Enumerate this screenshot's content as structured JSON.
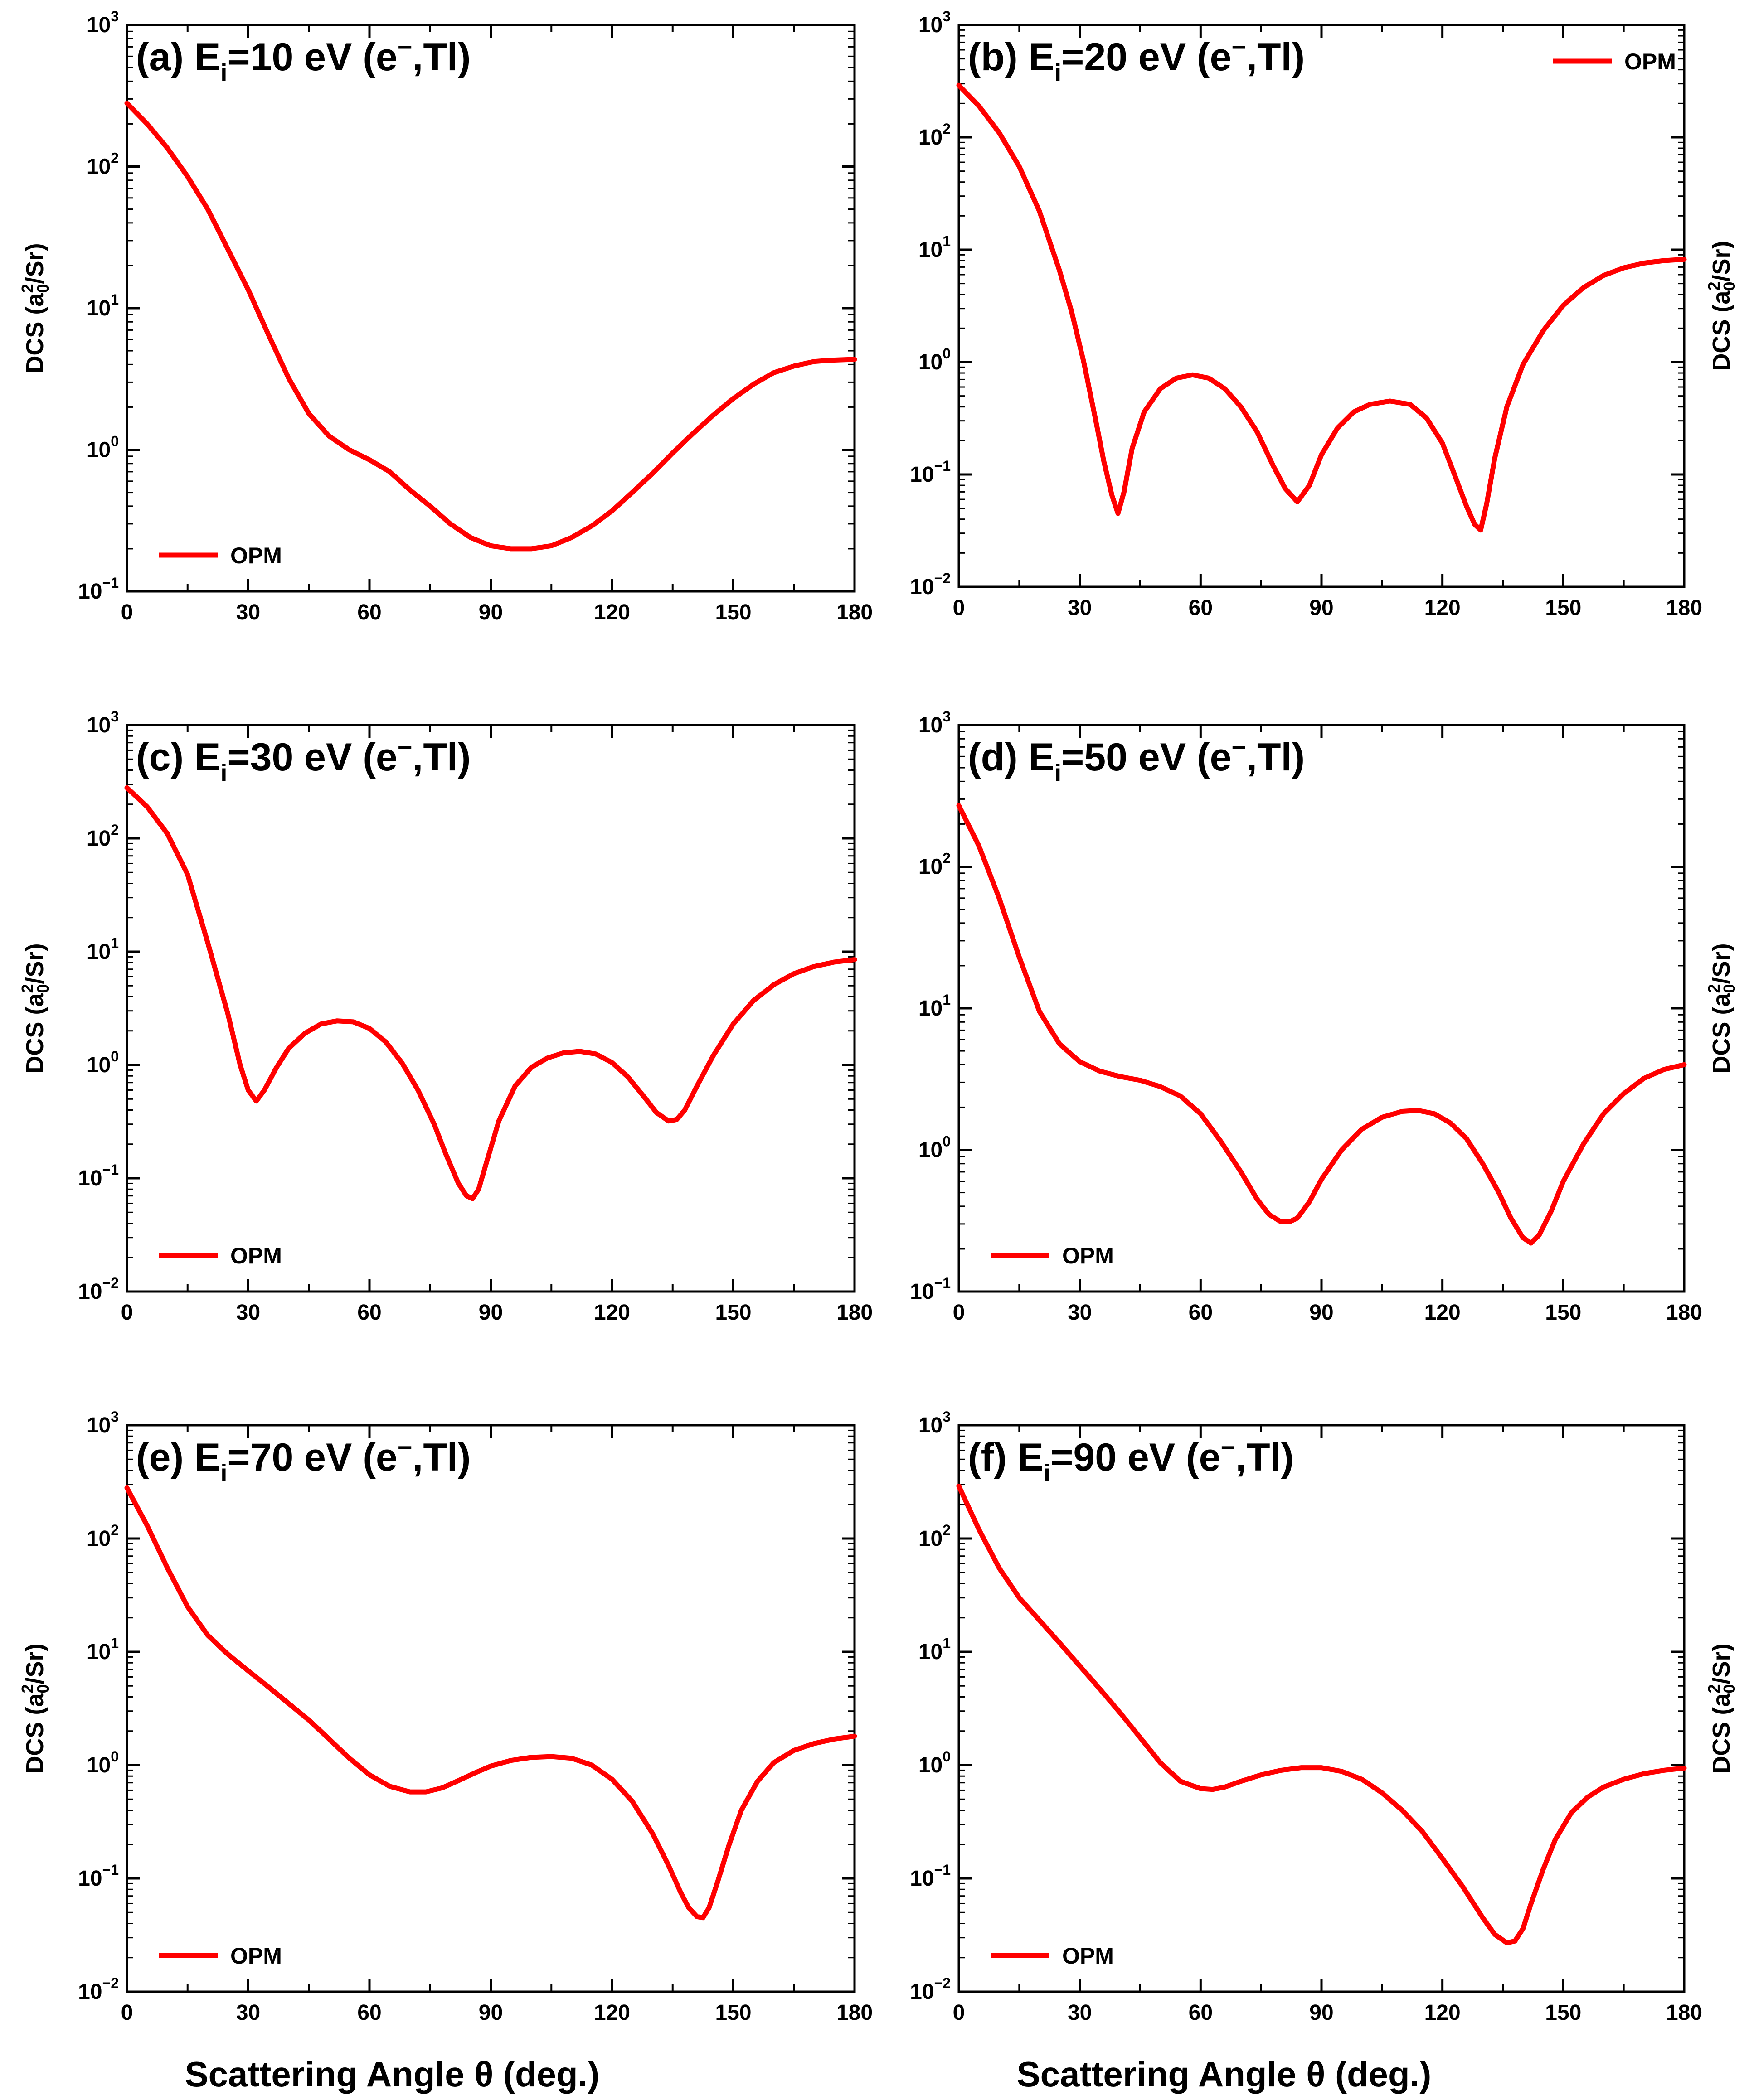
{
  "figure": {
    "xlabel": "Scattering Angle θ (deg.)"
  },
  "chart_data": [
    {
      "id": "a",
      "type": "line",
      "title": "(a) E",
      "subscript": "i",
      "title_rest": "=10 eV (e",
      "charge": "−",
      "title_end": ",Tl)",
      "xlabel": "Scattering Angle θ (deg.)",
      "ylabel": "DCS (a0²/Sr)",
      "ylabel_side": "left",
      "xlim": [
        0,
        180
      ],
      "ylim": [
        0.1,
        1000
      ],
      "yscale": "log",
      "xticks": [
        "0",
        "30",
        "60",
        "90",
        "120",
        "150",
        "180"
      ],
      "yticks": [
        "10^-1",
        "10^0",
        "10^1",
        "10^2",
        "10^3"
      ],
      "legend": "OPM",
      "legend_position": "bottom-left",
      "series": [
        {
          "name": "OPM",
          "color": "#ff0000",
          "x": [
            0,
            5,
            10,
            15,
            20,
            25,
            30,
            35,
            40,
            45,
            50,
            55,
            60,
            65,
            70,
            75,
            80,
            85,
            90,
            95,
            100,
            105,
            110,
            115,
            120,
            125,
            130,
            135,
            140,
            145,
            150,
            155,
            160,
            165,
            170,
            175,
            180
          ],
          "y": [
            280,
            200,
            135,
            85,
            50,
            26,
            13.5,
            6.5,
            3.2,
            1.8,
            1.25,
            1.0,
            0.85,
            0.7,
            0.52,
            0.4,
            0.3,
            0.24,
            0.21,
            0.2,
            0.2,
            0.21,
            0.24,
            0.29,
            0.37,
            0.5,
            0.68,
            0.95,
            1.3,
            1.75,
            2.3,
            2.9,
            3.5,
            3.9,
            4.2,
            4.3,
            4.35
          ]
        }
      ]
    },
    {
      "id": "b",
      "type": "line",
      "title": "(b) E",
      "subscript": "i",
      "title_rest": "=20 eV (e",
      "charge": "−",
      "title_end": ",Tl)",
      "xlabel": "Scattering Angle θ (deg.)",
      "ylabel": "DCS (a0²/Sr)",
      "ylabel_side": "right",
      "xlim": [
        0,
        180
      ],
      "ylim": [
        0.01,
        1000
      ],
      "yscale": "log",
      "xticks": [
        "0",
        "30",
        "60",
        "90",
        "120",
        "150",
        "180"
      ],
      "yticks": [
        "10^-2",
        "10^-1",
        "10^0",
        "10^1",
        "10^2",
        "10^3"
      ],
      "legend": "OPM",
      "legend_position": "top-right",
      "series": [
        {
          "name": "OPM",
          "color": "#ff0000",
          "x": [
            0,
            5,
            10,
            15,
            20,
            25,
            28,
            31,
            34,
            36,
            38,
            39.5,
            41,
            43,
            46,
            50,
            54,
            58,
            62,
            66,
            70,
            74,
            78,
            81,
            84,
            87,
            90,
            94,
            98,
            102,
            107,
            112,
            116,
            120,
            123,
            126,
            128,
            129.5,
            131,
            133,
            136,
            140,
            145,
            150,
            155,
            160,
            165,
            170,
            175,
            180
          ],
          "y": [
            290,
            190,
            110,
            55,
            22,
            6.5,
            2.8,
            1.0,
            0.3,
            0.13,
            0.065,
            0.045,
            0.07,
            0.17,
            0.36,
            0.58,
            0.72,
            0.77,
            0.72,
            0.58,
            0.4,
            0.24,
            0.12,
            0.075,
            0.057,
            0.08,
            0.15,
            0.26,
            0.36,
            0.42,
            0.45,
            0.42,
            0.32,
            0.19,
            0.1,
            0.052,
            0.036,
            0.032,
            0.055,
            0.14,
            0.4,
            0.95,
            1.9,
            3.2,
            4.6,
            5.9,
            6.9,
            7.6,
            8.0,
            8.2
          ]
        }
      ]
    },
    {
      "id": "c",
      "type": "line",
      "title": "(c) E",
      "subscript": "i",
      "title_rest": "=30 eV (e",
      "charge": "−",
      "title_end": ",Tl)",
      "xlabel": "Scattering Angle θ (deg.)",
      "ylabel": "DCS (a0²/Sr)",
      "ylabel_side": "left",
      "xlim": [
        0,
        180
      ],
      "ylim": [
        0.01,
        1000
      ],
      "yscale": "log",
      "xticks": [
        "0",
        "30",
        "60",
        "90",
        "120",
        "150",
        "180"
      ],
      "yticks": [
        "10^-2",
        "10^-1",
        "10^0",
        "10^1",
        "10^2",
        "10^3"
      ],
      "legend": "OPM",
      "legend_position": "bottom-left",
      "series": [
        {
          "name": "OPM",
          "color": "#ff0000",
          "x": [
            0,
            5,
            10,
            15,
            20,
            25,
            28,
            30,
            32,
            34,
            37,
            40,
            44,
            48,
            52,
            56,
            60,
            64,
            68,
            72,
            76,
            79,
            82,
            84,
            85.5,
            87,
            89,
            92,
            96,
            100,
            104,
            108,
            112,
            116,
            120,
            124,
            128,
            131,
            134,
            136,
            138,
            141,
            145,
            150,
            155,
            160,
            165,
            170,
            175,
            180
          ],
          "y": [
            280,
            190,
            110,
            48,
            12,
            2.8,
            1.0,
            0.6,
            0.48,
            0.6,
            0.95,
            1.4,
            1.9,
            2.3,
            2.45,
            2.4,
            2.1,
            1.6,
            1.05,
            0.6,
            0.3,
            0.16,
            0.09,
            0.07,
            0.066,
            0.08,
            0.14,
            0.32,
            0.65,
            0.95,
            1.15,
            1.28,
            1.32,
            1.25,
            1.05,
            0.78,
            0.52,
            0.38,
            0.32,
            0.33,
            0.4,
            0.65,
            1.2,
            2.3,
            3.7,
            5.1,
            6.4,
            7.4,
            8.1,
            8.5
          ]
        }
      ]
    },
    {
      "id": "d",
      "type": "line",
      "title": "(d) E",
      "subscript": "i",
      "title_rest": "=50 eV (e",
      "charge": "−",
      "title_end": ",Tl)",
      "xlabel": "Scattering Angle θ (deg.)",
      "ylabel": "DCS (a0²/Sr)",
      "ylabel_side": "right",
      "xlim": [
        0,
        180
      ],
      "ylim": [
        0.1,
        1000
      ],
      "yscale": "log",
      "xticks": [
        "0",
        "30",
        "60",
        "90",
        "120",
        "150",
        "180"
      ],
      "yticks": [
        "10^-1",
        "10^0",
        "10^1",
        "10^2",
        "10^3"
      ],
      "legend": "OPM",
      "legend_position": "bottom-left",
      "series": [
        {
          "name": "OPM",
          "color": "#ff0000",
          "x": [
            0,
            5,
            10,
            15,
            20,
            25,
            30,
            35,
            40,
            45,
            50,
            55,
            60,
            65,
            70,
            74,
            77,
            80,
            82,
            84,
            87,
            90,
            95,
            100,
            105,
            110,
            114,
            118,
            122,
            126,
            130,
            134,
            137,
            140,
            142,
            144,
            147,
            150,
            155,
            160,
            165,
            170,
            175,
            180
          ],
          "y": [
            270,
            140,
            60,
            23,
            9.5,
            5.6,
            4.2,
            3.6,
            3.3,
            3.1,
            2.8,
            2.4,
            1.8,
            1.15,
            0.7,
            0.45,
            0.35,
            0.31,
            0.31,
            0.33,
            0.43,
            0.62,
            1.0,
            1.4,
            1.7,
            1.87,
            1.9,
            1.8,
            1.55,
            1.2,
            0.8,
            0.5,
            0.33,
            0.24,
            0.22,
            0.25,
            0.37,
            0.6,
            1.1,
            1.8,
            2.5,
            3.2,
            3.7,
            4.0
          ]
        }
      ]
    },
    {
      "id": "e",
      "type": "line",
      "title": "(e) E",
      "subscript": "i",
      "title_rest": "=70 eV (e",
      "charge": "−",
      "title_end": ",Tl)",
      "xlabel": "Scattering Angle θ (deg.)",
      "ylabel": "DCS (a0²/Sr)",
      "ylabel_side": "left",
      "xlim": [
        0,
        180
      ],
      "ylim": [
        0.01,
        1000
      ],
      "yscale": "log",
      "xticks": [
        "0",
        "30",
        "60",
        "90",
        "120",
        "150",
        "180"
      ],
      "yticks": [
        "10^-2",
        "10^-1",
        "10^0",
        "10^1",
        "10^2",
        "10^3"
      ],
      "legend": "OPM",
      "legend_position": "bottom-left",
      "series": [
        {
          "name": "OPM",
          "color": "#ff0000",
          "x": [
            0,
            5,
            10,
            15,
            20,
            25,
            30,
            35,
            40,
            45,
            50,
            55,
            60,
            65,
            70,
            74,
            78,
            82,
            86,
            90,
            95,
            100,
            105,
            110,
            115,
            120,
            125,
            130,
            134,
            137,
            139,
            141,
            142.5,
            144,
            146,
            149,
            152,
            156,
            160,
            165,
            170,
            175,
            180
          ],
          "y": [
            280,
            130,
            55,
            25,
            14,
            9.5,
            6.8,
            4.9,
            3.5,
            2.5,
            1.7,
            1.15,
            0.82,
            0.65,
            0.58,
            0.58,
            0.63,
            0.73,
            0.85,
            0.98,
            1.1,
            1.17,
            1.19,
            1.15,
            1.0,
            0.75,
            0.48,
            0.25,
            0.13,
            0.075,
            0.055,
            0.046,
            0.045,
            0.055,
            0.09,
            0.2,
            0.4,
            0.72,
            1.05,
            1.35,
            1.55,
            1.7,
            1.8
          ]
        }
      ]
    },
    {
      "id": "f",
      "type": "line",
      "title": "(f) E",
      "subscript": "i",
      "title_rest": "=90 eV (e",
      "charge": "−",
      "title_end": ",Tl)",
      "xlabel": "Scattering Angle θ (deg.)",
      "ylabel": "DCS (a0²/Sr)",
      "ylabel_side": "right",
      "xlim": [
        0,
        180
      ],
      "ylim": [
        0.01,
        1000
      ],
      "yscale": "log",
      "xticks": [
        "0",
        "30",
        "60",
        "90",
        "120",
        "150",
        "180"
      ],
      "yticks": [
        "10^-2",
        "10^-1",
        "10^0",
        "10^1",
        "10^2",
        "10^3"
      ],
      "legend": "OPM",
      "legend_position": "bottom-left",
      "series": [
        {
          "name": "OPM",
          "color": "#ff0000",
          "x": [
            0,
            5,
            10,
            15,
            20,
            25,
            30,
            35,
            40,
            45,
            50,
            55,
            60,
            63,
            66,
            70,
            75,
            80,
            85,
            90,
            95,
            100,
            105,
            110,
            115,
            120,
            125,
            130,
            133,
            136,
            138,
            140,
            142,
            145,
            148,
            152,
            156,
            160,
            165,
            170,
            175,
            180
          ],
          "y": [
            290,
            120,
            55,
            30,
            19,
            12,
            7.5,
            4.7,
            2.9,
            1.75,
            1.05,
            0.72,
            0.62,
            0.61,
            0.64,
            0.72,
            0.82,
            0.9,
            0.95,
            0.95,
            0.88,
            0.75,
            0.57,
            0.4,
            0.26,
            0.15,
            0.085,
            0.045,
            0.032,
            0.027,
            0.028,
            0.036,
            0.06,
            0.12,
            0.22,
            0.38,
            0.52,
            0.64,
            0.75,
            0.84,
            0.9,
            0.94
          ]
        }
      ]
    }
  ]
}
